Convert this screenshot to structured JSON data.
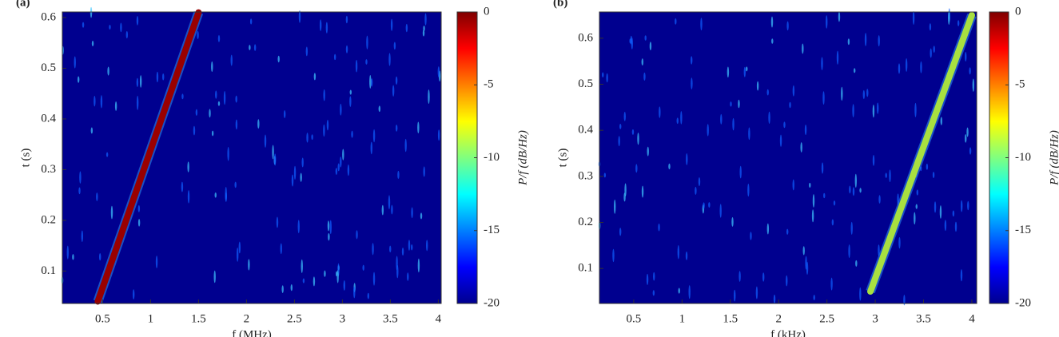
{
  "chart_data": [
    {
      "type": "spectrogram",
      "panel_label": "(a)",
      "xlabel": "f (MHz)",
      "ylabel": "t (s)",
      "xlim": [
        0.08,
        4.03
      ],
      "ylim": [
        0.036,
        0.611
      ],
      "xticks": [
        0.5,
        1,
        1.5,
        2,
        2.5,
        3,
        3.5,
        4
      ],
      "yticks": [
        0.1,
        0.2,
        0.3,
        0.4,
        0.5,
        0.6
      ],
      "background": "#00008f",
      "series": [
        {
          "color": "#9a0000",
          "x": [
            0.45,
            1.5
          ],
          "values": [
            0.04,
            0.61
          ]
        }
      ],
      "colorbar": {
        "label": "P/f (dB/Hz)",
        "lim": [
          -20,
          0
        ],
        "ticks": [
          0,
          -5,
          -10,
          -15,
          -20
        ]
      }
    },
    {
      "type": "spectrogram",
      "panel_label": "(b)",
      "xlabel": "f (kHz)",
      "ylabel": "t (s)",
      "xlim": [
        0.145,
        4.05
      ],
      "ylim": [
        0.024,
        0.657
      ],
      "xticks": [
        0.5,
        1,
        1.5,
        2,
        2.5,
        3,
        3.5,
        4
      ],
      "yticks": [
        0.1,
        0.2,
        0.3,
        0.4,
        0.5,
        0.6
      ],
      "background": "#00008f",
      "series": [
        {
          "color": "#a8e040",
          "x": [
            2.95,
            4
          ],
          "values": [
            0.05,
            0.65
          ]
        }
      ],
      "colorbar": {
        "label": "P/f (dB/Hz)",
        "lim": [
          -20,
          0
        ],
        "ticks": [
          0,
          -5,
          -10,
          -15,
          -20
        ]
      }
    }
  ]
}
